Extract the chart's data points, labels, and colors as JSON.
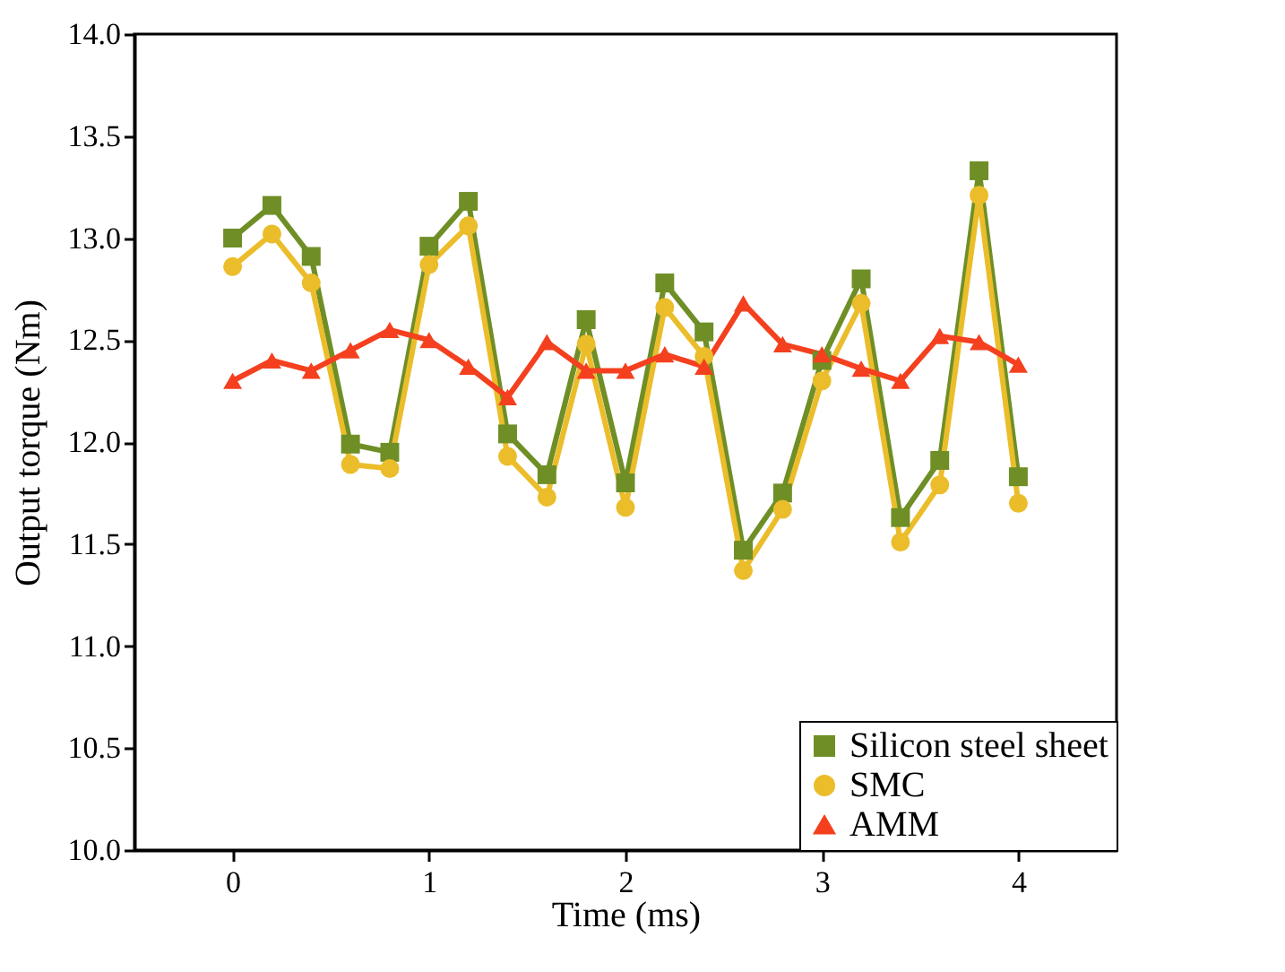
{
  "chart_data": {
    "type": "line",
    "xlabel": "Time (ms)",
    "ylabel": "Output torque (Nm)",
    "x": [
      0,
      0.2,
      0.4,
      0.6,
      0.8,
      1.0,
      1.2,
      1.4,
      1.6,
      1.8,
      2.0,
      2.2,
      2.4,
      2.6,
      2.8,
      3.0,
      3.2,
      3.4,
      3.6,
      3.8,
      4.0
    ],
    "series": [
      {
        "name": "Silicon steel sheet",
        "color": "#6f8f26",
        "marker": "square",
        "values": [
          13.0,
          13.16,
          12.91,
          11.99,
          11.95,
          12.96,
          13.18,
          12.04,
          11.84,
          12.6,
          11.8,
          12.78,
          12.54,
          11.47,
          11.75,
          12.4,
          12.8,
          11.63,
          11.91,
          13.33,
          11.83
        ]
      },
      {
        "name": "SMC",
        "color": "#ebbd2a",
        "marker": "circle",
        "values": [
          12.86,
          13.02,
          12.78,
          11.89,
          11.87,
          12.87,
          13.06,
          11.93,
          11.73,
          12.48,
          11.68,
          12.66,
          12.42,
          11.37,
          11.67,
          12.3,
          12.68,
          11.51,
          11.79,
          13.21,
          11.7
        ]
      },
      {
        "name": "AMM",
        "color": "#f4401f",
        "marker": "triangle",
        "values": [
          12.3,
          12.4,
          12.35,
          12.45,
          12.55,
          12.5,
          12.37,
          12.22,
          12.49,
          12.35,
          12.35,
          12.43,
          12.37,
          12.68,
          12.48,
          12.43,
          12.36,
          12.3,
          12.52,
          12.49,
          12.38
        ]
      }
    ],
    "xlim": [
      -0.5,
      4.5
    ],
    "xticks": [
      0,
      1,
      2,
      3,
      4
    ],
    "ylim": [
      10,
      14
    ],
    "yticks": [
      {
        "value": 10,
        "label": "10.0"
      },
      {
        "value": 10.5,
        "label": "10.5"
      },
      {
        "value": 11,
        "label": "11.0"
      },
      {
        "value": 11.5,
        "label": "11.5"
      },
      {
        "value": 12,
        "label": "12.0"
      },
      {
        "value": 12.5,
        "label": "12.5"
      },
      {
        "value": 13,
        "label": "13.0"
      },
      {
        "value": 13.5,
        "label": "13.5"
      },
      {
        "value": 14,
        "label": "14.0"
      }
    ],
    "grid": false,
    "legend": "bottom right",
    "line_style": "solid"
  }
}
